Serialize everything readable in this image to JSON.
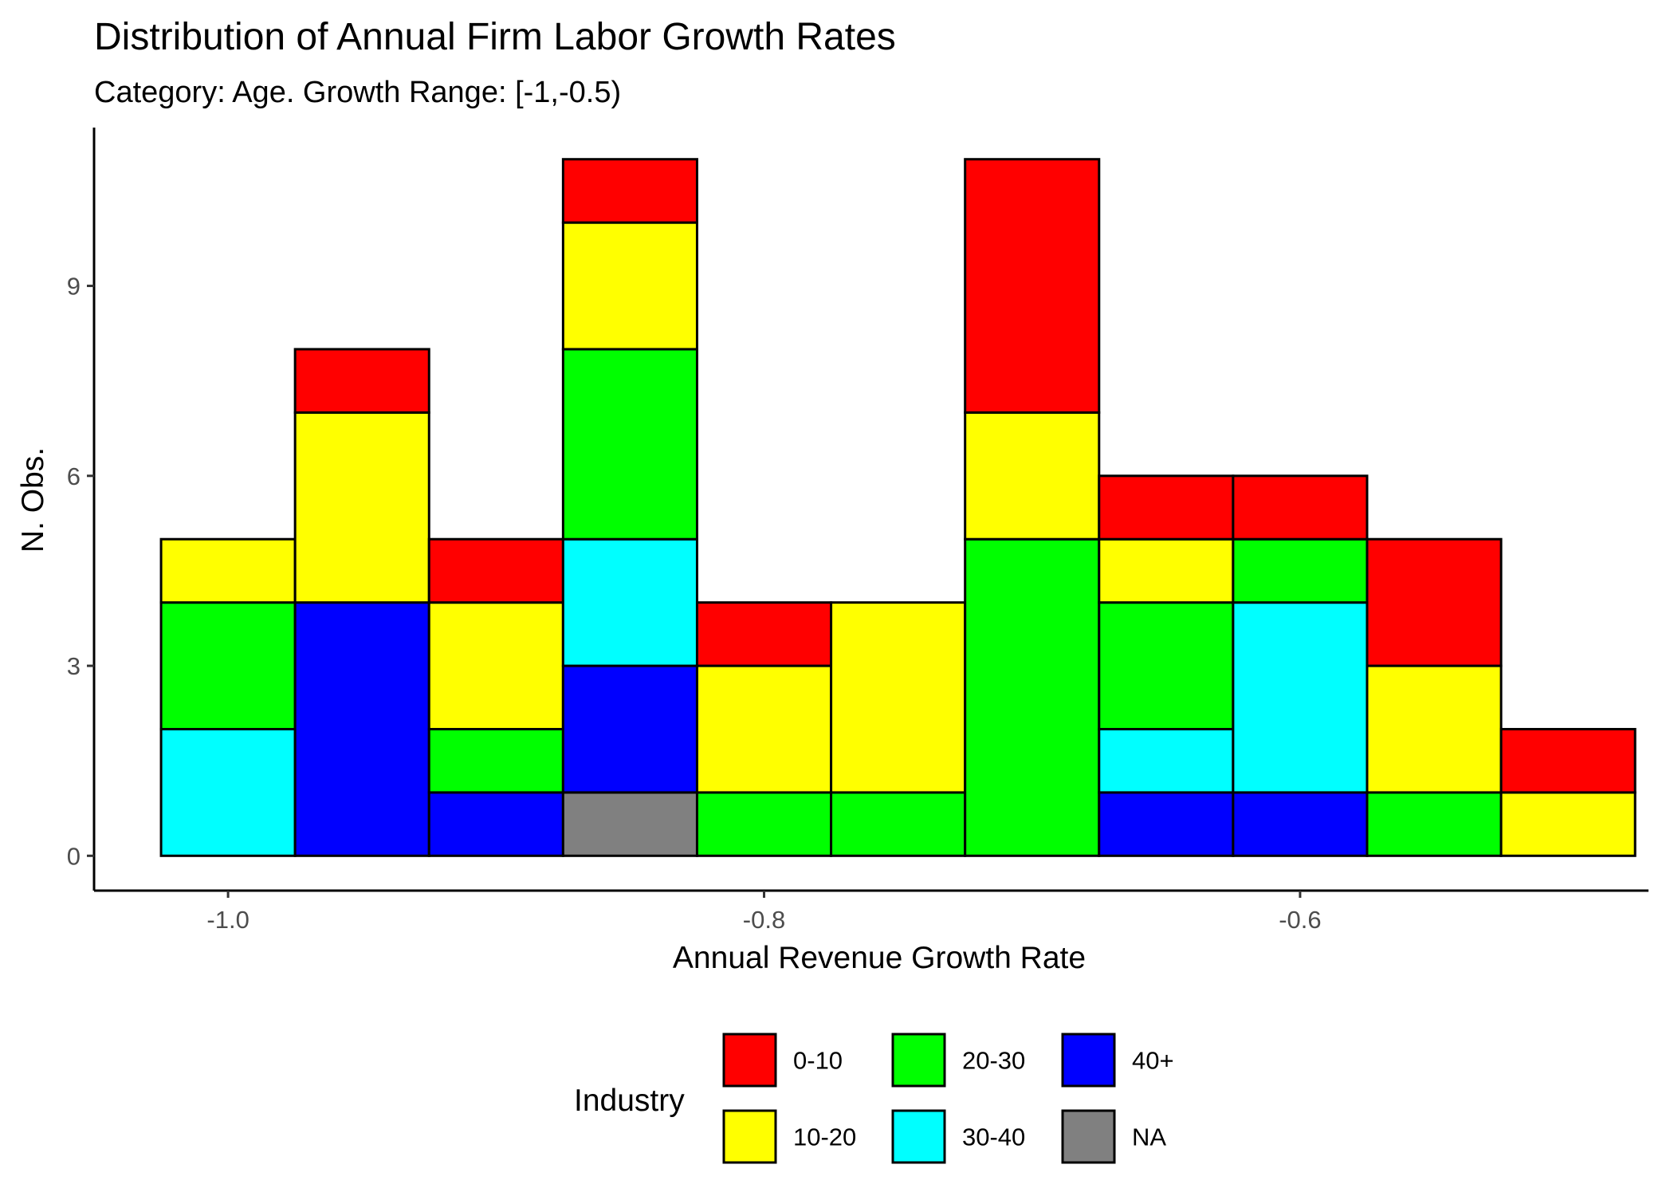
{
  "chart_data": {
    "type": "bar",
    "stacked": true,
    "title": "Distribution of Annual Firm Labor Growth Rates",
    "subtitle": "Category: Age. Growth Range: [-1,-0.5)",
    "xlabel": "Annual Revenue Growth Rate",
    "ylabel": "N. Obs.",
    "xlim": [
      -1.05,
      -0.47
    ],
    "ylim": [
      -0.55,
      11.5
    ],
    "x_ticks": [
      {
        "value": -1.0,
        "label": "-1.0"
      },
      {
        "value": -0.8,
        "label": "-0.8"
      },
      {
        "value": -0.6,
        "label": "-0.6"
      }
    ],
    "y_ticks": [
      {
        "value": 0,
        "label": "0"
      },
      {
        "value": 3,
        "label": "3"
      },
      {
        "value": 6,
        "label": "6"
      },
      {
        "value": 9,
        "label": "9"
      }
    ],
    "grid": false,
    "bin_width": 0.05,
    "bins": [
      -1.0,
      -0.95,
      -0.9,
      -0.85,
      -0.8,
      -0.75,
      -0.7,
      -0.65,
      -0.6,
      -0.55,
      -0.5
    ],
    "series": [
      {
        "name": "NA",
        "color": "#808080",
        "values": [
          0,
          0,
          0,
          1,
          0,
          0,
          0,
          0,
          0,
          0,
          0
        ]
      },
      {
        "name": "40+",
        "color": "#0000FF",
        "values": [
          0,
          4,
          1,
          2,
          0,
          0,
          0,
          1,
          1,
          0,
          0
        ]
      },
      {
        "name": "30-40",
        "color": "#00FFFF",
        "values": [
          2,
          0,
          0,
          2,
          0,
          0,
          0,
          1,
          3,
          0,
          0
        ]
      },
      {
        "name": "20-30",
        "color": "#00FF00",
        "values": [
          2,
          0,
          1,
          3,
          1,
          1,
          5,
          2,
          1,
          1,
          0
        ]
      },
      {
        "name": "10-20",
        "color": "#FFFF00",
        "values": [
          1,
          3,
          2,
          2,
          2,
          3,
          2,
          1,
          0,
          2,
          1
        ]
      },
      {
        "name": "0-10",
        "color": "#FF0000",
        "values": [
          0,
          1,
          1,
          1,
          1,
          0,
          4,
          1,
          1,
          2,
          1
        ]
      }
    ],
    "legend": {
      "title": "Industry",
      "position": "bottom",
      "items": [
        {
          "label": "0-10",
          "color": "#FF0000"
        },
        {
          "label": "10-20",
          "color": "#FFFF00"
        },
        {
          "label": "20-30",
          "color": "#00FF00"
        },
        {
          "label": "30-40",
          "color": "#00FFFF"
        },
        {
          "label": "40+",
          "color": "#0000FF"
        },
        {
          "label": "NA",
          "color": "#808080"
        }
      ]
    }
  }
}
